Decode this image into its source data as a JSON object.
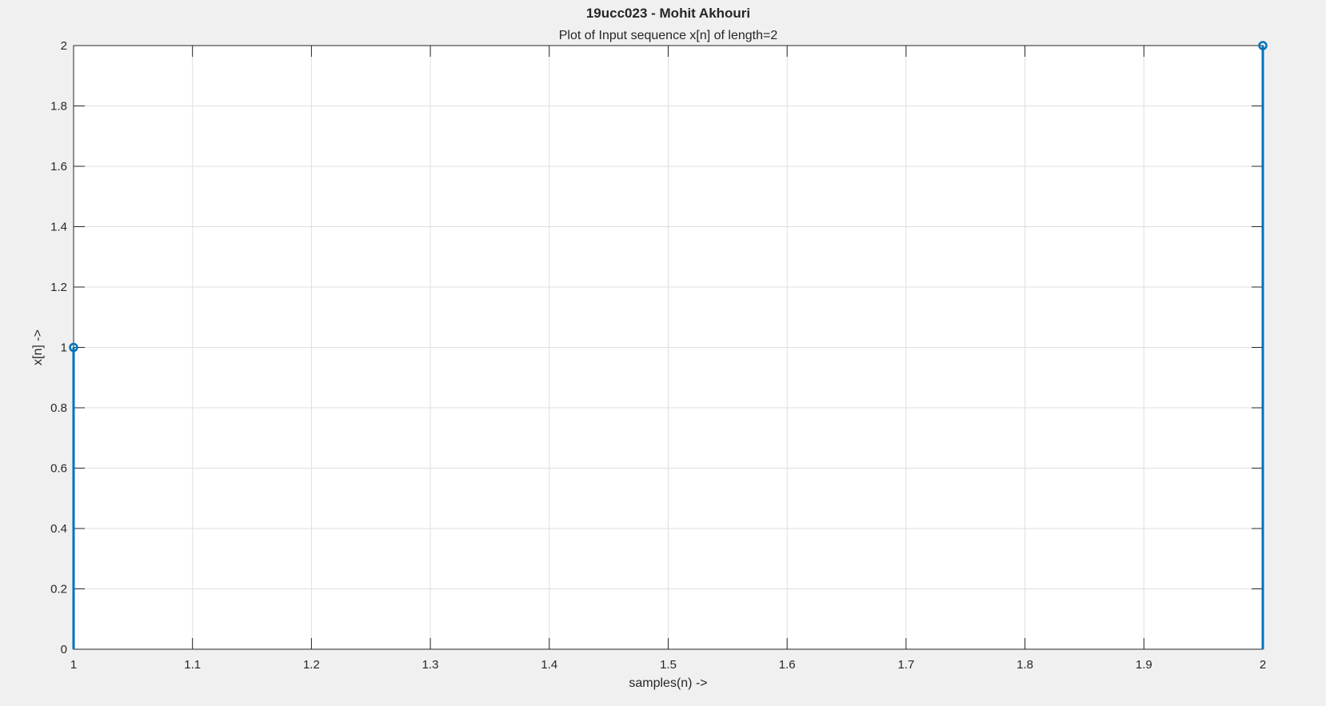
{
  "chart_data": {
    "type": "stem",
    "title": "19ucc023 - Mohit Akhouri",
    "subtitle": "Plot of Input sequence x[n] of length=2",
    "xlabel": "samples(n) ->",
    "ylabel": "x[n] ->",
    "xlim": [
      1,
      2
    ],
    "ylim": [
      0,
      2
    ],
    "xticks": [
      "1",
      "1.1",
      "1.2",
      "1.3",
      "1.4",
      "1.5",
      "1.6",
      "1.7",
      "1.8",
      "1.9",
      "2"
    ],
    "yticks": [
      "0",
      "0.2",
      "0.4",
      "0.6",
      "0.8",
      "1",
      "1.2",
      "1.4",
      "1.6",
      "1.8",
      "2"
    ],
    "grid": true,
    "series": [
      {
        "x": [
          1,
          2
        ],
        "values": [
          1,
          2
        ],
        "color": "#0072BD"
      }
    ]
  }
}
